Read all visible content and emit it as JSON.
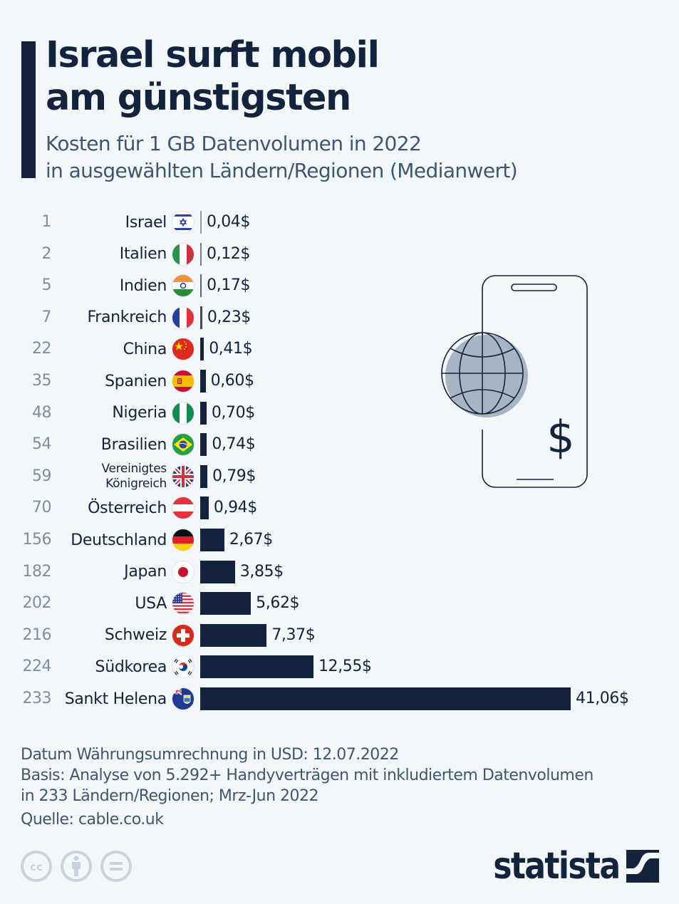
{
  "header": {
    "title_lines": [
      "Israel surft mobil",
      "am günstigsten"
    ],
    "subtitle_lines": [
      "Kosten für 1 GB Datenvolumen in 2022",
      "in ausgewählten Ländern/Regionen (Medianwert)"
    ]
  },
  "chart_data": {
    "type": "bar",
    "orientation": "horizontal",
    "title": "Israel surft mobil am günstigsten",
    "subtitle": "Kosten für 1 GB Datenvolumen in 2022 in ausgewählten Ländern/Regionen (Medianwert)",
    "xlabel": "",
    "ylabel": "",
    "unit": "USD",
    "xlim": [
      0,
      41.06
    ],
    "grid": false,
    "categories": [
      "Israel",
      "Italien",
      "Indien",
      "Frankreich",
      "China",
      "Spanien",
      "Nigeria",
      "Brasilien",
      "Vereinigtes Königreich",
      "Österreich",
      "Deutschland",
      "Japan",
      "USA",
      "Schweiz",
      "Südkorea",
      "Sankt Helena"
    ],
    "category_lines": [
      [
        "Israel"
      ],
      [
        "Italien"
      ],
      [
        "Indien"
      ],
      [
        "Frankreich"
      ],
      [
        "China"
      ],
      [
        "Spanien"
      ],
      [
        "Nigeria"
      ],
      [
        "Brasilien"
      ],
      [
        "Vereinigtes",
        "Königreich"
      ],
      [
        "Österreich"
      ],
      [
        "Deutschland"
      ],
      [
        "Japan"
      ],
      [
        "USA"
      ],
      [
        "Schweiz"
      ],
      [
        "Südkorea"
      ],
      [
        "Sankt Helena"
      ]
    ],
    "ranks": [
      "1",
      "2",
      "5",
      "7",
      "22",
      "35",
      "48",
      "54",
      "59",
      "70",
      "156",
      "182",
      "202",
      "216",
      "224",
      "233"
    ],
    "values": [
      0.04,
      0.12,
      0.17,
      0.23,
      0.41,
      0.6,
      0.7,
      0.74,
      0.79,
      0.94,
      2.67,
      3.85,
      5.62,
      7.37,
      12.55,
      41.06
    ],
    "value_labels": [
      "0,04$",
      "0,12$",
      "0,17$",
      "0,23$",
      "0,41$",
      "0,60$",
      "0,70$",
      "0,74$",
      "0,79$",
      "0,94$",
      "2,67$",
      "3,85$",
      "5,62$",
      "7,37$",
      "12,55$",
      "41,06$"
    ],
    "flags": [
      "israel-flag",
      "italy-flag",
      "india-flag",
      "france-flag",
      "china-flag",
      "spain-flag",
      "nigeria-flag",
      "brazil-flag",
      "uk-flag",
      "austria-flag",
      "germany-flag",
      "japan-flag",
      "usa-flag",
      "switzerland-flag",
      "south-korea-flag",
      "saint-helena-flag"
    ],
    "bar_color": "#13233d"
  },
  "illustration": {
    "icon": "phone-globe-dollar-icon",
    "dollar_symbol": "$"
  },
  "footer": {
    "notes": [
      "Datum Währungsumrechnung in USD: 12.07.2022",
      "Basis: Analyse von 5.292+ Handyverträgen mit inkludiertem Datenvolumen",
      "in 233 Ländern/Regionen; Mrz-Jun 2022"
    ],
    "source": "Quelle: cable.co.uk",
    "license_icons": [
      "cc-icon",
      "attribution-icon",
      "no-derivatives-icon"
    ],
    "brand": "statista"
  },
  "colors": {
    "background": "#f4f7fa",
    "primary": "#13233d",
    "subtitle": "#3c5673",
    "rank": "#7d8ea0",
    "icon_gray": "#c9d3dd",
    "globe_fill": "#a9b4c2"
  }
}
